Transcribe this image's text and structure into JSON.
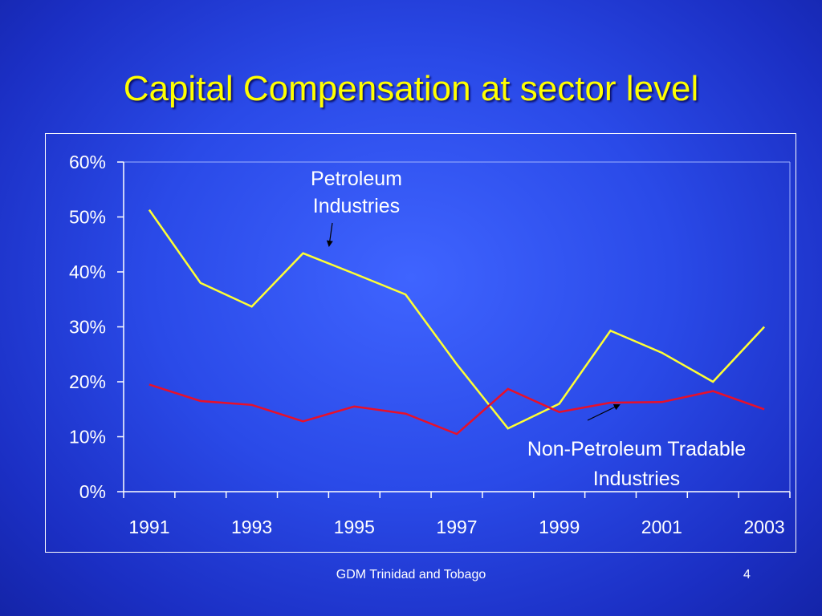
{
  "slide": {
    "title": "Capital Compensation at sector level",
    "footer": "GDM Trinidad and Tobago",
    "page_number": "4"
  },
  "colors": {
    "petroleum": "#ffff33",
    "non_petroleum": "#e8102a",
    "title": "#ffff00",
    "axis": "#ffffff"
  },
  "chart_data": {
    "type": "line",
    "title": "",
    "xlabel": "",
    "ylabel": "",
    "x": [
      1991,
      1992,
      1993,
      1994,
      1995,
      1996,
      1997,
      1998,
      1999,
      2000,
      2001,
      2002,
      2003
    ],
    "x_tick_labels": [
      "1991",
      "1993",
      "1995",
      "1997",
      "1999",
      "2001",
      "2003"
    ],
    "y_tick_values": [
      0,
      0.1,
      0.2,
      0.3,
      0.4,
      0.5,
      0.6
    ],
    "y_tick_labels": [
      "0%",
      "10%",
      "20%",
      "30%",
      "40%",
      "50%",
      "60%"
    ],
    "ylim": [
      0,
      0.6
    ],
    "grid": false,
    "series": [
      {
        "key": "petroleum",
        "values": [
          0.513,
          0.38,
          0.337,
          0.434,
          0.397,
          0.359,
          0.232,
          0.115,
          0.16,
          0.293,
          0.253,
          0.2,
          0.3
        ]
      },
      {
        "key": "non_petroleum",
        "values": [
          0.195,
          0.165,
          0.158,
          0.128,
          0.155,
          0.142,
          0.105,
          0.187,
          0.145,
          0.162,
          0.163,
          0.183,
          0.15
        ]
      }
    ],
    "annotations": [
      {
        "key": "petroleum",
        "lines": [
          "Petroleum",
          "Industries"
        ]
      },
      {
        "key": "non_petroleum",
        "lines": [
          "Non-Petroleum Tradable",
          "Industries"
        ]
      }
    ]
  }
}
